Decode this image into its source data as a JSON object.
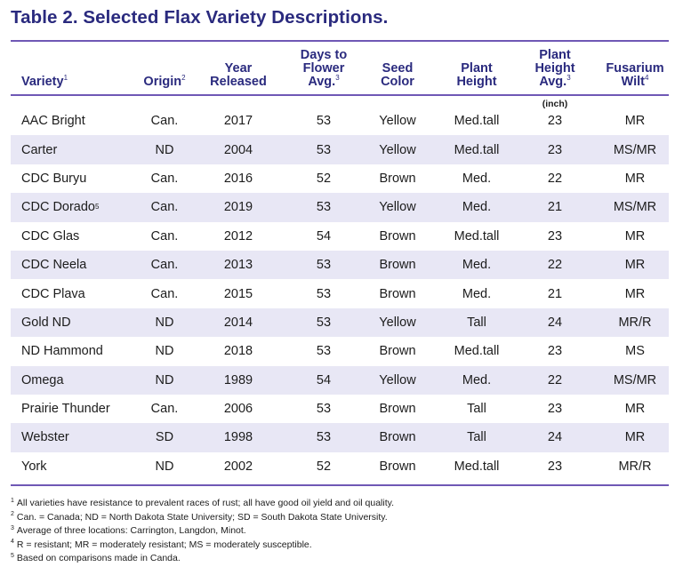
{
  "title": "Table 2. Selected Flax Variety Descriptions.",
  "headers": {
    "variety": {
      "text": "Variety",
      "sup": "1"
    },
    "origin": {
      "text": "Origin",
      "sup": "2"
    },
    "year": {
      "line1": "Year",
      "line2": "Released"
    },
    "days": {
      "line1": "Days to",
      "line2": "Flower",
      "line3": "Avg.",
      "sup": "3"
    },
    "seed": {
      "line1": "Seed",
      "line2": "Color"
    },
    "plant_height": {
      "line1": "Plant",
      "line2": "Height"
    },
    "plant_height_avg": {
      "line1": "Plant",
      "line2": "Height",
      "line3": "Avg.",
      "sup": "3"
    },
    "fusarium": {
      "line1": "Fusarium",
      "line2": "Wilt",
      "sup": "4"
    }
  },
  "unit_inch": "(inch)",
  "rows": [
    {
      "variety": "AAC Bright",
      "variety_sup": "",
      "origin": "Can.",
      "year": "2017",
      "days": "53",
      "seed": "Yellow",
      "height": "Med.tall",
      "height_avg": "23",
      "fusarium": "MR"
    },
    {
      "variety": "Carter",
      "variety_sup": "",
      "origin": "ND",
      "year": "2004",
      "days": "53",
      "seed": "Yellow",
      "height": "Med.tall",
      "height_avg": "23",
      "fusarium": "MS/MR"
    },
    {
      "variety": "CDC Buryu",
      "variety_sup": "",
      "origin": "Can.",
      "year": "2016",
      "days": "52",
      "seed": "Brown",
      "height": "Med.",
      "height_avg": "22",
      "fusarium": "MR"
    },
    {
      "variety": "CDC Dorado",
      "variety_sup": "5",
      "origin": "Can.",
      "year": "2019",
      "days": "53",
      "seed": "Yellow",
      "height": "Med.",
      "height_avg": "21",
      "fusarium": "MS/MR"
    },
    {
      "variety": "CDC Glas",
      "variety_sup": "",
      "origin": "Can.",
      "year": "2012",
      "days": "54",
      "seed": "Brown",
      "height": "Med.tall",
      "height_avg": "23",
      "fusarium": "MR"
    },
    {
      "variety": "CDC Neela",
      "variety_sup": "",
      "origin": "Can.",
      "year": "2013",
      "days": "53",
      "seed": "Brown",
      "height": "Med.",
      "height_avg": "22",
      "fusarium": "MR"
    },
    {
      "variety": "CDC Plava",
      "variety_sup": "",
      "origin": "Can.",
      "year": "2015",
      "days": "53",
      "seed": "Brown",
      "height": "Med.",
      "height_avg": "21",
      "fusarium": "MR"
    },
    {
      "variety": "Gold ND",
      "variety_sup": "",
      "origin": "ND",
      "year": "2014",
      "days": "53",
      "seed": "Yellow",
      "height": "Tall",
      "height_avg": "24",
      "fusarium": "MR/R"
    },
    {
      "variety": "ND Hammond",
      "variety_sup": "",
      "origin": "ND",
      "year": "2018",
      "days": "53",
      "seed": "Brown",
      "height": "Med.tall",
      "height_avg": "23",
      "fusarium": "MS"
    },
    {
      "variety": "Omega",
      "variety_sup": "",
      "origin": "ND",
      "year": "1989",
      "days": "54",
      "seed": "Yellow",
      "height": "Med.",
      "height_avg": "22",
      "fusarium": "MS/MR"
    },
    {
      "variety": "Prairie Thunder",
      "variety_sup": "",
      "origin": "Can.",
      "year": "2006",
      "days": "53",
      "seed": "Brown",
      "height": "Tall",
      "height_avg": "23",
      "fusarium": "MR"
    },
    {
      "variety": "Webster",
      "variety_sup": "",
      "origin": "SD",
      "year": "1998",
      "days": "53",
      "seed": "Brown",
      "height": "Tall",
      "height_avg": "24",
      "fusarium": "MR"
    },
    {
      "variety": "York",
      "variety_sup": "",
      "origin": "ND",
      "year": "2002",
      "days": "52",
      "seed": "Brown",
      "height": "Med.tall",
      "height_avg": "23",
      "fusarium": "MR/R"
    }
  ],
  "footnotes": [
    {
      "num": "1",
      "text": "All varieties have resistance to prevalent races of rust; all have good oil yield and oil quality."
    },
    {
      "num": "2",
      "text": "Can. = Canada;  ND = North Dakota State University;  SD = South Dakota State University."
    },
    {
      "num": "3",
      "text": "Average of three locations: Carrington, Langdon, Minot."
    },
    {
      "num": "4",
      "text": "R = resistant;  MR = moderately resistant;  MS = moderately susceptible."
    },
    {
      "num": "5",
      "text": "Based on comparisons made in Canda."
    }
  ],
  "colors": {
    "title": "#2a2a7e",
    "rule": "#6f58b5",
    "shade": "#e8e7f5"
  }
}
